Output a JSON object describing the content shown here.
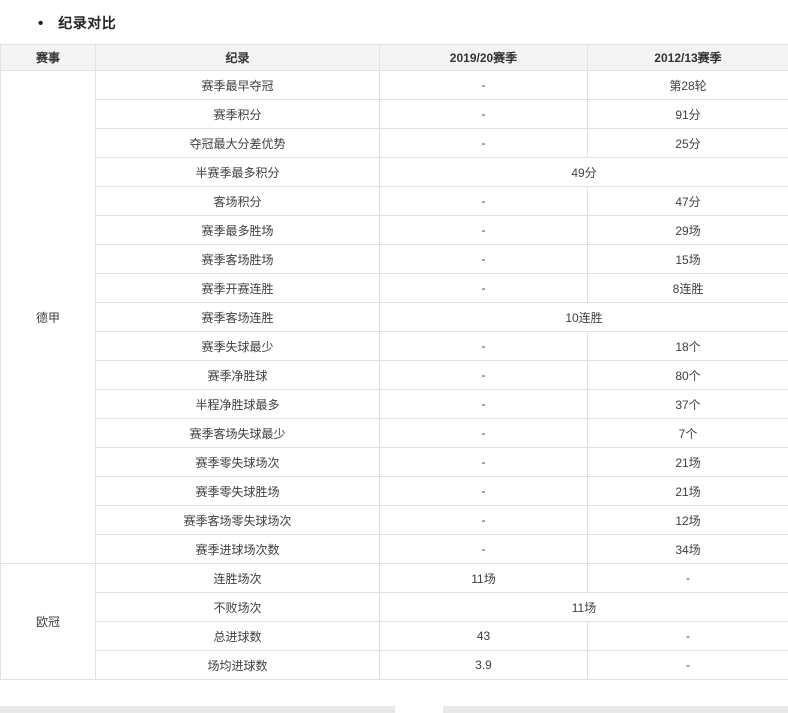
{
  "page_title": "纪录对比",
  "colors": {
    "header_bg": "#f4f4f4",
    "border": "#e2e2e2",
    "cell_text": "#404040",
    "title_text": "#222222"
  },
  "table": {
    "headers": [
      "赛事",
      "纪录",
      "2019/20赛季",
      "2012/13赛季"
    ],
    "groups": [
      {
        "competition": "德甲",
        "rows": [
          {
            "record": "赛季最早夺冠",
            "season_2019_20": "-",
            "season_2012_13": "第28轮"
          },
          {
            "record": "赛季积分",
            "season_2019_20": "-",
            "season_2012_13": "91分"
          },
          {
            "record": "夺冠最大分差优势",
            "season_2019_20": "-",
            "season_2012_13": "25分"
          },
          {
            "record": "半赛季最多积分",
            "merged_value": "49分"
          },
          {
            "record": "客场积分",
            "season_2019_20": "-",
            "season_2012_13": "47分"
          },
          {
            "record": "赛季最多胜场",
            "season_2019_20": "-",
            "season_2012_13": "29场"
          },
          {
            "record": "赛季客场胜场",
            "season_2019_20": "-",
            "season_2012_13": "15场"
          },
          {
            "record": "赛季开赛连胜",
            "season_2019_20": "-",
            "season_2012_13": "8连胜"
          },
          {
            "record": "赛季客场连胜",
            "merged_value": "10连胜"
          },
          {
            "record": "赛季失球最少",
            "season_2019_20": "-",
            "season_2012_13": "18个"
          },
          {
            "record": "赛季净胜球",
            "season_2019_20": "-",
            "season_2012_13": "80个"
          },
          {
            "record": "半程净胜球最多",
            "season_2019_20": "-",
            "season_2012_13": "37个"
          },
          {
            "record": "赛季客场失球最少",
            "season_2019_20": "-",
            "season_2012_13": "7个"
          },
          {
            "record": "赛季零失球场次",
            "season_2019_20": "-",
            "season_2012_13": "21场"
          },
          {
            "record": "赛季零失球胜场",
            "season_2019_20": "-",
            "season_2012_13": "21场"
          },
          {
            "record": "赛季客场零失球场次",
            "season_2019_20": "-",
            "season_2012_13": "12场"
          },
          {
            "record": "赛季进球场次数",
            "season_2019_20": "-",
            "season_2012_13": "34场"
          }
        ]
      },
      {
        "competition": "欧冠",
        "rows": [
          {
            "record": "连胜场次",
            "season_2019_20": "11场",
            "season_2012_13": "-"
          },
          {
            "record": "不败场次",
            "merged_value": "11场"
          },
          {
            "record": "总进球数",
            "season_2019_20": "43",
            "season_2012_13": "-"
          },
          {
            "record": "场均进球数",
            "season_2019_20": "3.9",
            "season_2012_13": "-"
          }
        ]
      }
    ]
  }
}
